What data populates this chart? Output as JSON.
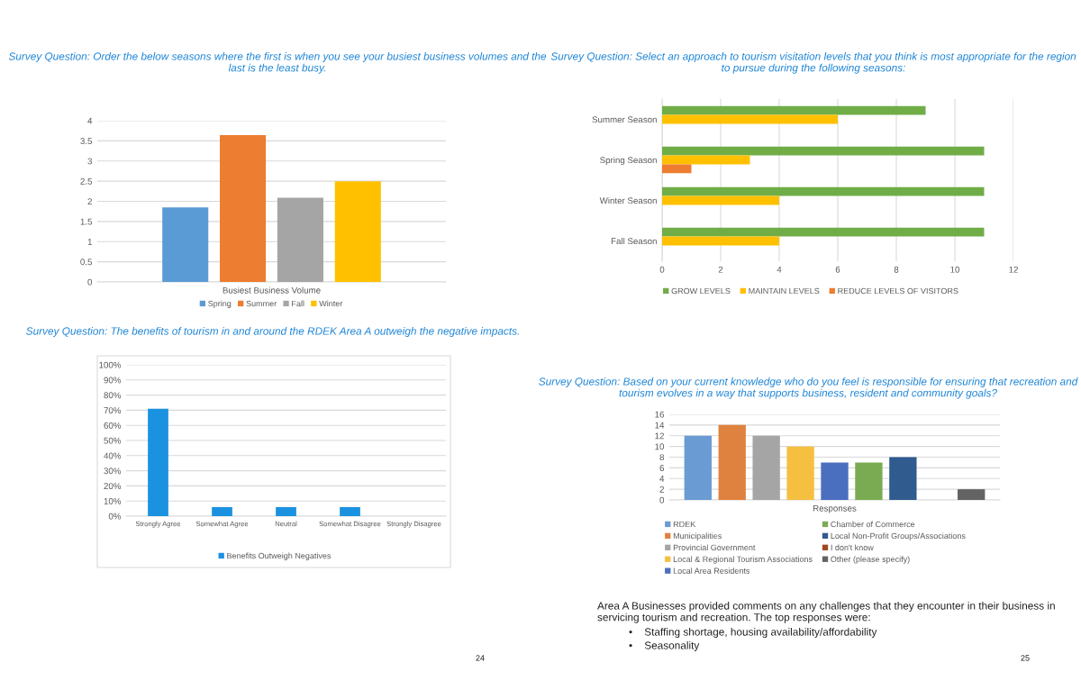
{
  "chart_data": [
    {
      "type": "bar",
      "title": "Survey Question: Order the below seasons where the first is when you see your busiest business volumes and the last is the least busy.",
      "categories": [
        "Busiest Business Volume"
      ],
      "series": [
        {
          "name": "Spring",
          "color": "#5b9bd5",
          "values": [
            1.85
          ]
        },
        {
          "name": "Summer",
          "color": "#ed7d31",
          "values": [
            3.64
          ]
        },
        {
          "name": "Fall",
          "color": "#a5a5a5",
          "values": [
            2.09
          ]
        },
        {
          "name": "Winter",
          "color": "#ffc000",
          "values": [
            2.5
          ]
        }
      ],
      "ylim": [
        0,
        4
      ],
      "yticks": [
        0,
        0.5,
        1,
        1.5,
        2,
        2.5,
        3,
        3.5,
        4
      ],
      "grid": "y",
      "legend": "bottom"
    },
    {
      "type": "bar",
      "orientation": "horizontal",
      "title": "Survey Question: Select an approach to tourism visitation levels that you think is most appropriate for the region to pursue during the following seasons:",
      "categories": [
        "Summer Season",
        "Spring Season",
        "Winter Season",
        "Fall Season"
      ],
      "series": [
        {
          "name": "GROW LEVELS",
          "color": "#70ad47",
          "values": [
            9,
            11,
            11,
            11
          ]
        },
        {
          "name": "MAINTAIN LEVELS",
          "color": "#ffc000",
          "values": [
            6,
            3,
            4,
            4
          ]
        },
        {
          "name": "REDUCE LEVELS OF VISITORS",
          "color": "#ed7d31",
          "values": [
            0,
            1,
            0,
            0
          ]
        }
      ],
      "xlim": [
        0,
        12
      ],
      "xticks": [
        0,
        2,
        4,
        6,
        8,
        10,
        12
      ],
      "grid": "x",
      "legend": "bottom"
    },
    {
      "type": "bar",
      "title": "Survey Question: The benefits of tourism in and around the RDEK Area A outweigh the negative impacts.",
      "categories": [
        "Strongly Agree",
        "Somewhat Agree",
        "Neutral",
        "Somewhat Disagree",
        "Strongly Disagree"
      ],
      "series": [
        {
          "name": "Benefits Outweigh Negatives",
          "color": "#1b92e0",
          "values": [
            71,
            6,
            6,
            6,
            0
          ]
        }
      ],
      "ylim": [
        0,
        100
      ],
      "yticks": [
        {
          "value": 0,
          "label": "0%"
        },
        {
          "value": 10,
          "label": "10%"
        },
        {
          "value": 20,
          "label": "20%"
        },
        {
          "value": 30,
          "label": "30%"
        },
        {
          "value": 40,
          "label": "40%"
        },
        {
          "value": 50,
          "label": "50%"
        },
        {
          "value": 60,
          "label": "60%"
        },
        {
          "value": 70,
          "label": "70%"
        },
        {
          "value": 80,
          "label": "80%"
        },
        {
          "value": 90,
          "label": "90%"
        },
        {
          "value": 100,
          "label": "100%"
        }
      ],
      "grid": "y",
      "legend": "bottom",
      "annotations": [
        "24"
      ]
    },
    {
      "type": "bar",
      "title": "Survey Question: Based on your current knowledge who do you feel is responsible for ensuring that recreation and tourism evolves in a way that supports business, resident and community goals?",
      "categories": [
        "Responses"
      ],
      "series": [
        {
          "name": "RDEK",
          "color": "#6a9bd3",
          "values": [
            12
          ]
        },
        {
          "name": "Municipalities",
          "color": "#e0823f",
          "values": [
            14
          ]
        },
        {
          "name": "Provincial Government",
          "color": "#a5a5a5",
          "values": [
            12
          ]
        },
        {
          "name": "Local & Regional Tourism Associations",
          "color": "#f5bf40",
          "values": [
            10
          ]
        },
        {
          "name": "Local Area Residents",
          "color": "#4a6fbf",
          "values": [
            7
          ]
        },
        {
          "name": "Chamber of Commerce",
          "color": "#7aab52",
          "values": [
            7
          ]
        },
        {
          "name": "Local Non-Profit Groups/Associations",
          "color": "#2f5b8f",
          "values": [
            8
          ]
        },
        {
          "name": "I don't know",
          "color": "#9e4a1f",
          "values": [
            0
          ]
        },
        {
          "name": "Other (please specify)",
          "color": "#636363",
          "values": [
            2
          ]
        }
      ],
      "ylim": [
        0,
        16
      ],
      "yticks": [
        0,
        2,
        4,
        6,
        8,
        10,
        12,
        14,
        16
      ],
      "grid": "y",
      "legend": "bottom",
      "annotations": [
        "Area A Businesses provided comments on any challenges that they encounter in their business in servicing tourism and recreation. The top responses were:",
        "•    Staffing shortage, housing availability/affordability",
        "•    Seasonality",
        "25"
      ]
    }
  ]
}
